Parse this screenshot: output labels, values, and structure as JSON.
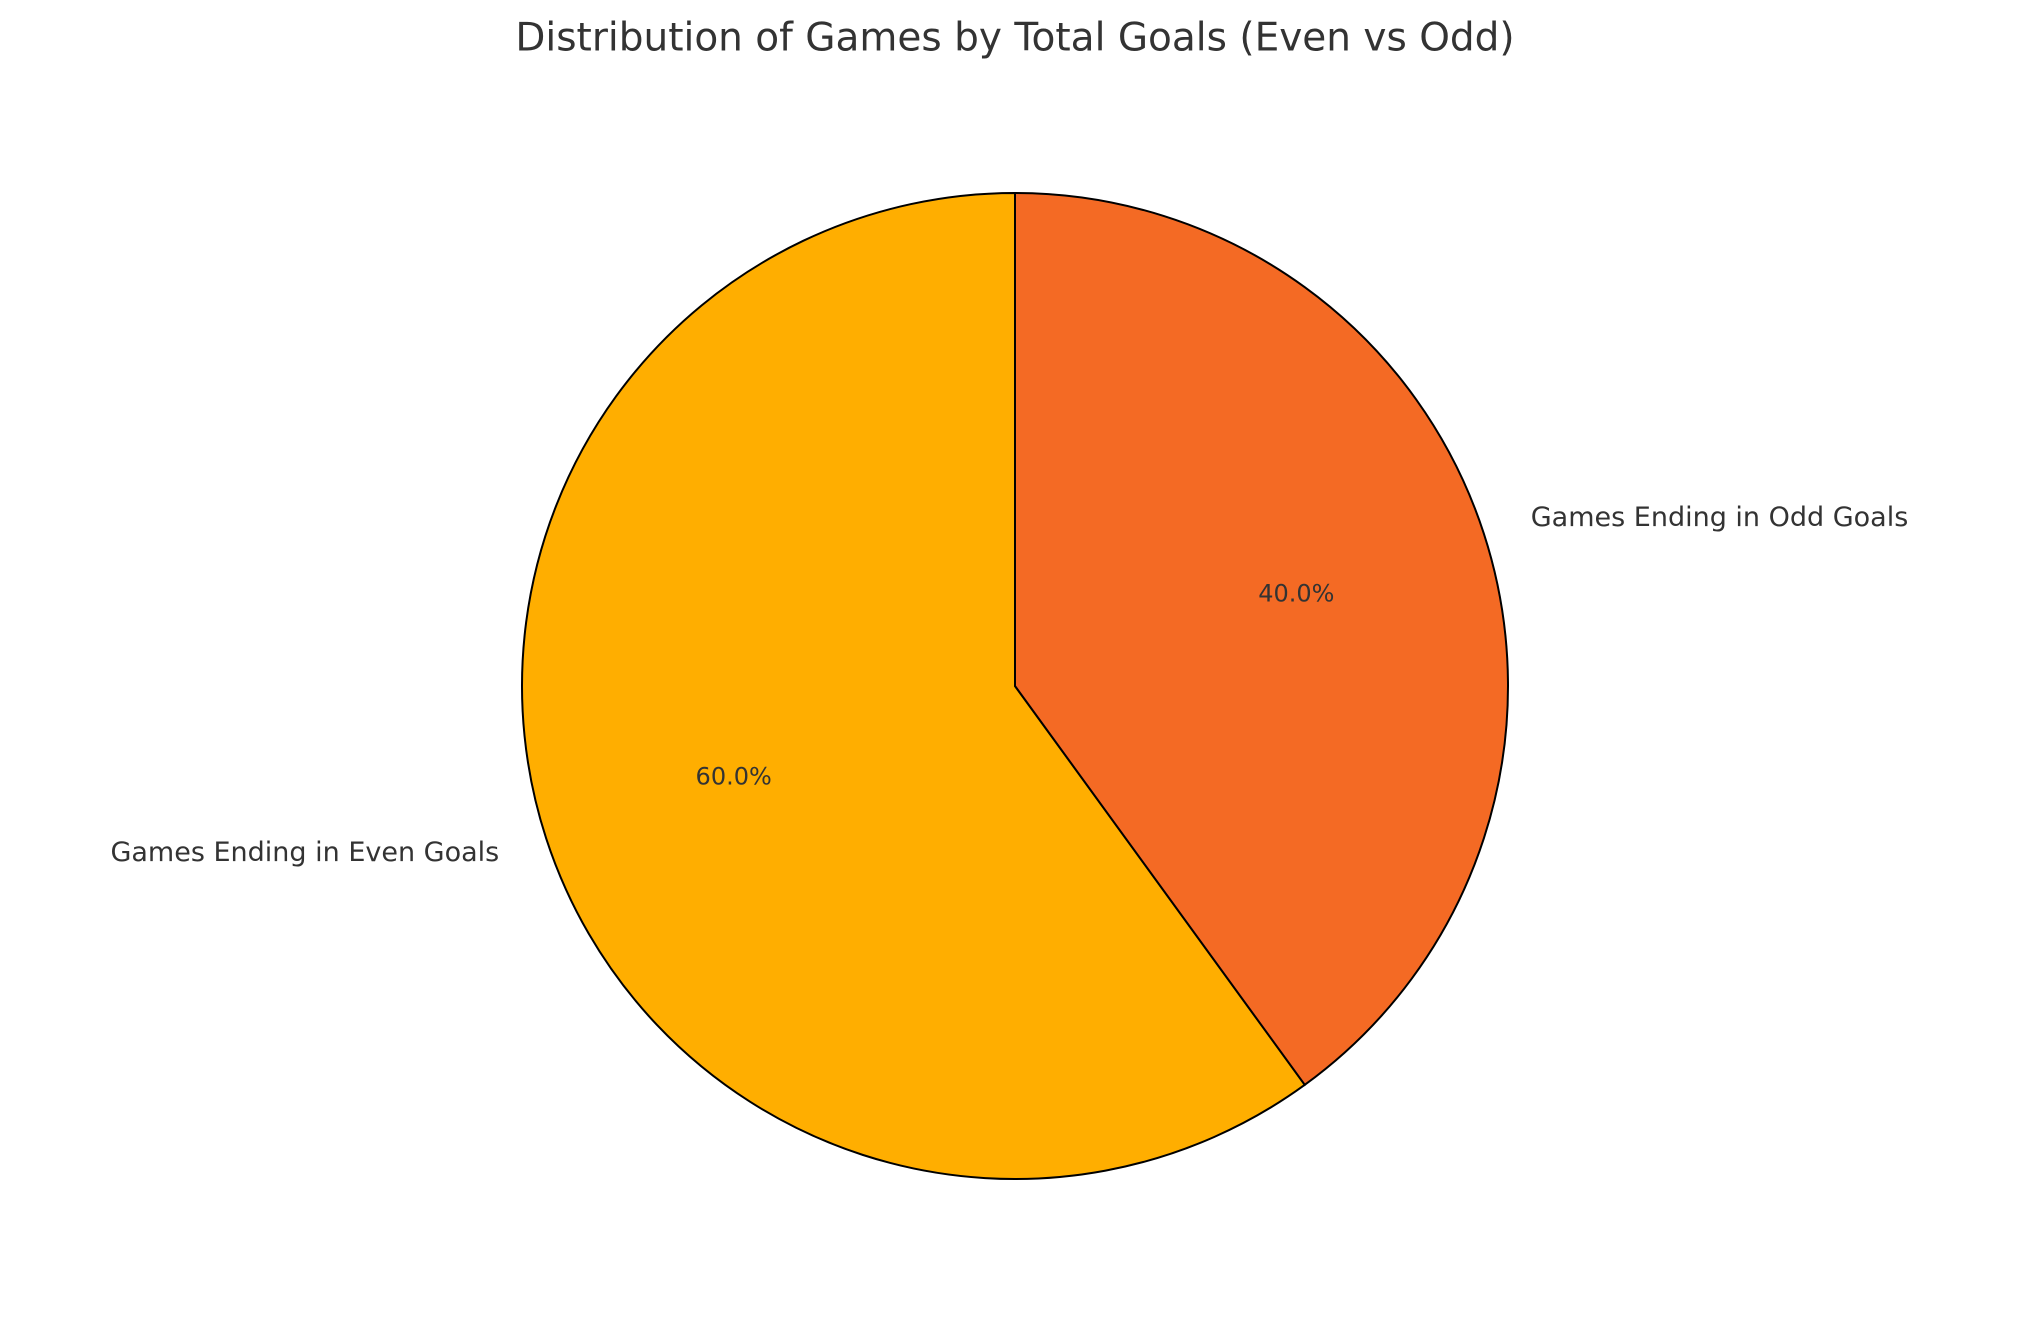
{
  "chart_data": {
    "type": "pie",
    "title": "Distribution of Games by Total Goals (Even vs Odd)",
    "categories": [
      "Games Ending in Even Goals",
      "Games Ending in Odd Goals"
    ],
    "values": [
      60,
      40
    ],
    "value_labels": [
      "60.0%",
      "40.0%"
    ],
    "colors": [
      "#FFAE00",
      "#F46A24"
    ]
  }
}
